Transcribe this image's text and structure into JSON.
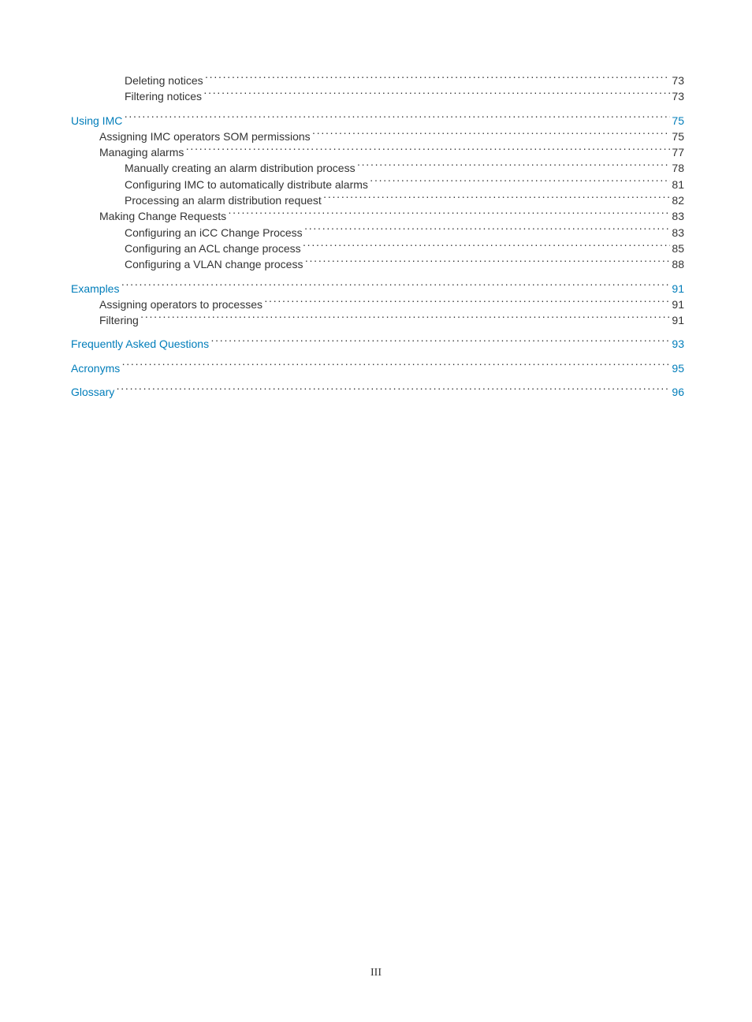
{
  "colors": {
    "link": "#007dba",
    "text": "#333333",
    "background": "#ffffff"
  },
  "typography": {
    "body_font": "Arial, Helvetica, sans-serif",
    "body_size_pt": 10.5,
    "footer_font": "Times New Roman, serif"
  },
  "toc": [
    {
      "label": "Deleting notices",
      "page": "73",
      "indent": 2,
      "link": false,
      "gap": false
    },
    {
      "label": "Filtering notices",
      "page": "73",
      "indent": 2,
      "link": false,
      "gap": false
    },
    {
      "label": "Using IMC",
      "page": "75",
      "indent": 0,
      "link": true,
      "gap": true
    },
    {
      "label": "Assigning IMC operators SOM permissions",
      "page": "75",
      "indent": 1,
      "link": false,
      "gap": false
    },
    {
      "label": "Managing alarms",
      "page": "77",
      "indent": 1,
      "link": false,
      "gap": false
    },
    {
      "label": "Manually creating an alarm distribution process",
      "page": "78",
      "indent": 2,
      "link": false,
      "gap": false
    },
    {
      "label": "Configuring IMC to automatically distribute alarms",
      "page": "81",
      "indent": 2,
      "link": false,
      "gap": false
    },
    {
      "label": "Processing an alarm distribution request",
      "page": "82",
      "indent": 2,
      "link": false,
      "gap": false
    },
    {
      "label": "Making Change Requests",
      "page": "83",
      "indent": 1,
      "link": false,
      "gap": false
    },
    {
      "label": "Configuring an iCC Change Process",
      "page": "83",
      "indent": 2,
      "link": false,
      "gap": false
    },
    {
      "label": "Configuring an ACL change process",
      "page": "85",
      "indent": 2,
      "link": false,
      "gap": false
    },
    {
      "label": "Configuring a VLAN change process",
      "page": "88",
      "indent": 2,
      "link": false,
      "gap": false
    },
    {
      "label": "Examples",
      "page": "91",
      "indent": 0,
      "link": true,
      "gap": true
    },
    {
      "label": "Assigning operators to processes",
      "page": "91",
      "indent": 1,
      "link": false,
      "gap": false
    },
    {
      "label": "Filtering",
      "page": "91",
      "indent": 1,
      "link": false,
      "gap": false
    },
    {
      "label": "Frequently Asked Questions",
      "page": "93",
      "indent": 0,
      "link": true,
      "gap": true
    },
    {
      "label": "Acronyms",
      "page": "95",
      "indent": 0,
      "link": true,
      "gap": true
    },
    {
      "label": "Glossary",
      "page": "96",
      "indent": 0,
      "link": true,
      "gap": true
    }
  ],
  "footer": "III"
}
